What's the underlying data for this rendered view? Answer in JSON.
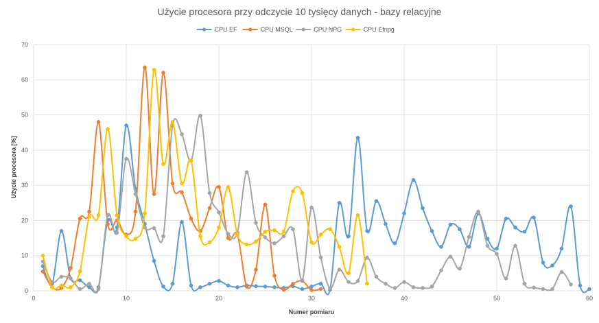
{
  "chart_data": {
    "type": "line",
    "title": "Użycie procesora przy odczycie 10 tysięcy danych - bazy relacyjne",
    "xlabel": "Numer pomiaru",
    "ylabel": "Użycie procesora [%]",
    "xlim": [
      0,
      60
    ],
    "ylim": [
      0,
      70
    ],
    "xticks": [
      0,
      10,
      20,
      30,
      40,
      50,
      60
    ],
    "yticks": [
      0,
      10,
      20,
      30,
      40,
      50,
      60,
      70
    ],
    "grid": true,
    "legend_position": "top",
    "smooth": true,
    "series": [
      {
        "name": "CPU EF",
        "color": "#5B9BD5",
        "x": [
          1,
          2,
          3,
          4,
          5,
          6,
          7,
          8,
          9,
          10,
          11,
          12,
          13,
          14,
          15,
          16,
          17,
          18,
          19,
          20,
          21,
          22,
          23,
          24,
          25,
          26,
          27,
          28,
          29,
          30,
          31,
          32,
          33,
          34,
          35,
          36,
          37,
          38,
          39,
          40,
          41,
          42,
          43,
          44,
          45,
          46,
          47,
          48,
          49,
          50,
          51,
          52,
          53,
          54,
          55,
          56,
          57,
          58,
          59,
          60
        ],
        "values": [
          7,
          2,
          17,
          3.5,
          3,
          1,
          1,
          20,
          18,
          47,
          29,
          19,
          8.5,
          1.2,
          2,
          19.5,
          1.5,
          1,
          2,
          2.8,
          1.5,
          1,
          1.5,
          1.3,
          1.2,
          1,
          0.8,
          1.3,
          0.5,
          1.2,
          2,
          0.3,
          25,
          15.5,
          43.5,
          17,
          25.5,
          19,
          13.5,
          22,
          31.5,
          23.5,
          17,
          12.5,
          18.8,
          17.5,
          12.5,
          22,
          14.8,
          12,
          20.5,
          18,
          16.8,
          20.8,
          8,
          7.2,
          12,
          24,
          1.5,
          0.5
        ]
      },
      {
        "name": "CPU MSQL",
        "color": "#ED7D31",
        "x": [
          1,
          2,
          3,
          4,
          5,
          6,
          7,
          8,
          9,
          10,
          11,
          12,
          13,
          14,
          15,
          16,
          17,
          18,
          19,
          20,
          21,
          22,
          23,
          24,
          25,
          26,
          27,
          28,
          29,
          30,
          31
        ],
        "values": [
          5.5,
          1,
          0.8,
          6.5,
          20.5,
          22.5,
          48,
          19,
          20,
          16,
          22.5,
          63.5,
          27.5,
          62,
          30.5,
          28,
          20.5,
          17,
          23.5,
          29.5,
          15,
          16,
          1.2,
          6,
          24.5,
          4.3,
          0.3,
          2,
          2.8,
          0.2,
          0.5
        ]
      },
      {
        "name": "CPU NPG",
        "color": "#A5A5A5",
        "x": [
          1,
          2,
          3,
          4,
          5,
          6,
          7,
          8,
          9,
          10,
          11,
          12,
          13,
          14,
          15,
          16,
          17,
          18,
          19,
          20,
          21,
          22,
          23,
          24,
          25,
          26,
          27,
          28,
          29,
          30,
          31,
          32,
          33,
          34,
          35,
          36,
          37,
          38,
          39,
          40,
          41,
          42,
          43,
          44,
          45,
          46,
          47,
          48,
          49,
          50,
          51,
          52,
          53,
          54,
          55,
          56,
          57,
          58
        ],
        "values": [
          8.3,
          2.5,
          4,
          3.5,
          0.5,
          2,
          0.5,
          21.5,
          16.5,
          37.5,
          27.5,
          18,
          17.8,
          15.5,
          47,
          44.5,
          37,
          49.8,
          27.8,
          22.3,
          16.2,
          16.5,
          33.7,
          19.3,
          15.2,
          13.5,
          15.5,
          17.5,
          3,
          23.7,
          9.5,
          0.7,
          6,
          2.5,
          2.8,
          9.4,
          4,
          2,
          0.8,
          2.5,
          1,
          0.8,
          1.2,
          5.8,
          9.7,
          6.3,
          15.3,
          22.5,
          12.8,
          10.5,
          3.5,
          12.8,
          2,
          0.9,
          0.5,
          0.5,
          5.3,
          1.8
        ]
      },
      {
        "name": "CPU Efnpg",
        "color": "#FFC000",
        "x": [
          1,
          2,
          3,
          4,
          5,
          6,
          7,
          8,
          9,
          10,
          11,
          12,
          13,
          14,
          15,
          16,
          17,
          18,
          19,
          20,
          21,
          22,
          23,
          24,
          25,
          26,
          27,
          28,
          29,
          30,
          31,
          32,
          33,
          34,
          35,
          36
        ],
        "values": [
          10,
          1,
          1.5,
          1,
          5.5,
          21,
          21.5,
          46,
          21.5,
          15.5,
          14.8,
          22,
          62.8,
          36,
          48,
          30.5,
          37,
          15.5,
          13.8,
          18,
          29.5,
          16,
          13.2,
          14,
          16.8,
          17.2,
          16.8,
          28.3,
          27.8,
          13.8,
          16,
          17.5,
          12.5,
          5,
          21.5,
          2
        ]
      }
    ]
  }
}
